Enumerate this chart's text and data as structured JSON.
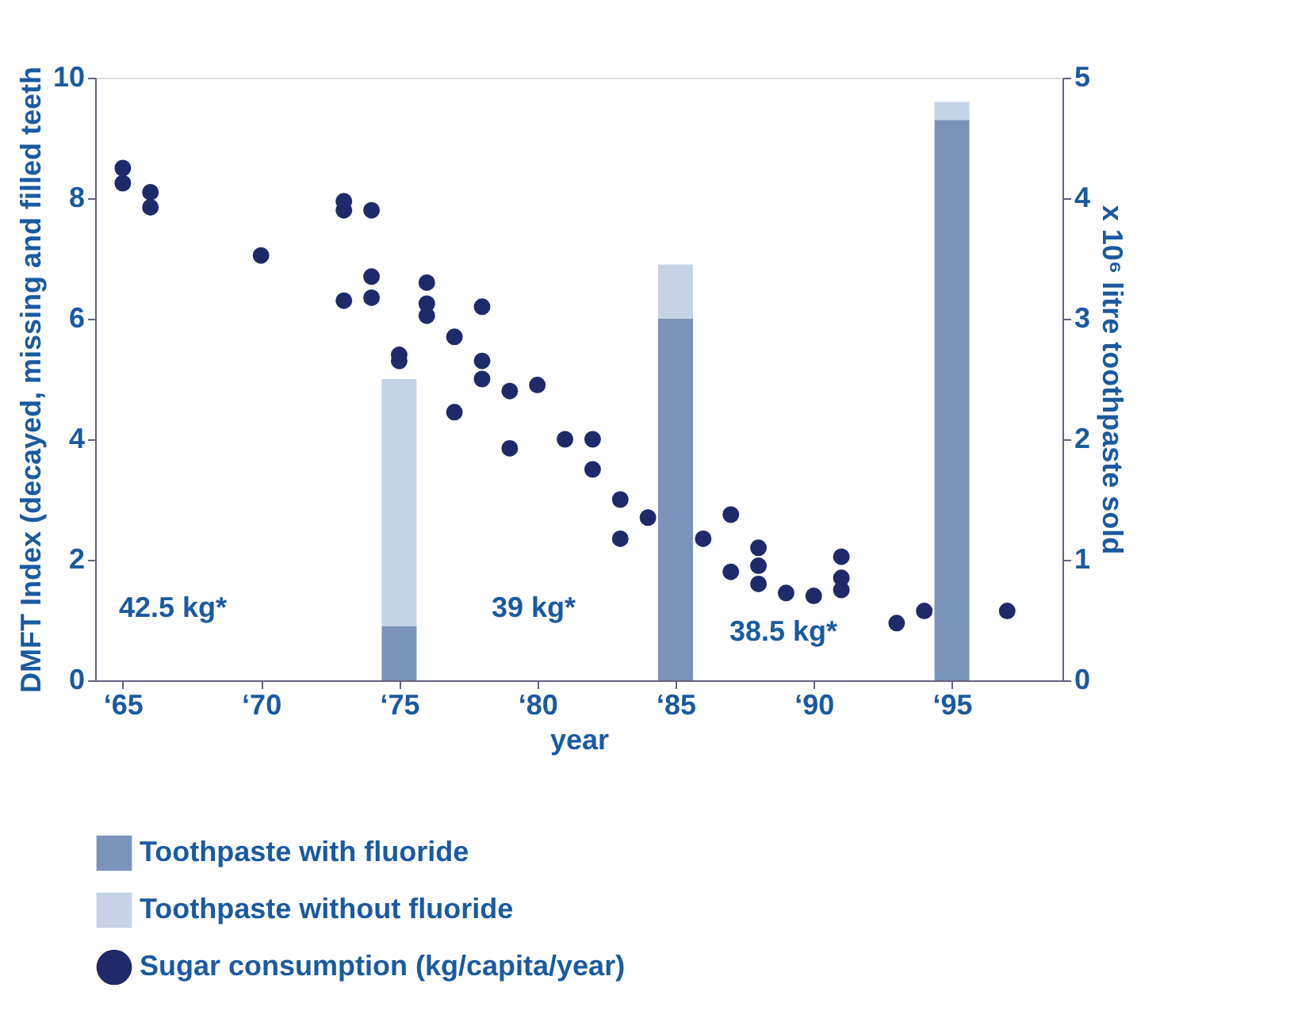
{
  "chart_data": {
    "type": "scatter",
    "xlabel": "year",
    "ylabel": "DMFT Index (decayed, missing and filled teeth",
    "y2label": "x 10⁶ litre toothpaste sold",
    "xlim": [
      64,
      99
    ],
    "xticks": [
      {
        "value": 65,
        "label": "‘65"
      },
      {
        "value": 70,
        "label": "‘70"
      },
      {
        "value": 75,
        "label": "‘75"
      },
      {
        "value": 80,
        "label": "‘80"
      },
      {
        "value": 85,
        "label": "‘85"
      },
      {
        "value": 90,
        "label": "‘90"
      },
      {
        "value": 95,
        "label": "‘95"
      }
    ],
    "marker": "circle",
    "ylim": [
      0,
      10
    ],
    "yticks": [
      0,
      2,
      4,
      6,
      8,
      10
    ],
    "y2lim": [
      0,
      5
    ],
    "y2ticks": [
      0,
      1,
      2,
      3,
      4,
      5
    ],
    "grid": false,
    "legend": "bottom",
    "stacked": true,
    "series": [
      {
        "name": "Toothpaste with fluoride",
        "type": "bar",
        "axis": "y2",
        "color": "#7a93bb",
        "x": [
          75,
          85,
          95
        ],
        "values": [
          0.45,
          3.0,
          4.65
        ]
      },
      {
        "name": "Toothpaste without fluoride",
        "type": "bar",
        "axis": "y2",
        "color": "#c5d3e6",
        "x": [
          75,
          85,
          95
        ],
        "values": [
          2.05,
          0.45,
          0.15
        ]
      },
      {
        "name": "Sugar consumption (kg/capita/year)",
        "color": "#1f2a6b",
        "x": [
          65,
          65,
          66,
          66,
          70,
          73,
          73,
          74,
          73,
          74,
          74,
          76,
          76,
          76,
          75,
          75,
          77,
          78,
          78,
          78,
          77,
          79,
          80,
          79,
          81,
          82,
          82,
          83,
          83,
          84,
          86,
          87,
          87,
          88,
          88,
          88,
          89,
          90,
          91,
          91,
          91,
          93,
          94,
          97
        ],
        "values": [
          8.5,
          8.25,
          8.1,
          7.85,
          7.05,
          7.95,
          7.8,
          7.8,
          6.3,
          6.7,
          6.35,
          6.6,
          6.25,
          6.05,
          5.4,
          5.3,
          5.7,
          6.2,
          5.3,
          5.0,
          4.45,
          4.8,
          4.9,
          3.85,
          4.0,
          4.0,
          3.5,
          3.0,
          2.35,
          2.7,
          2.35,
          2.75,
          1.8,
          2.2,
          1.9,
          1.6,
          1.45,
          1.4,
          2.05,
          1.7,
          1.5,
          0.95,
          1.15,
          1.15
        ]
      }
    ],
    "annotations": [
      "42.5 kg*",
      "39 kg*",
      "38.5 kg*"
    ]
  }
}
